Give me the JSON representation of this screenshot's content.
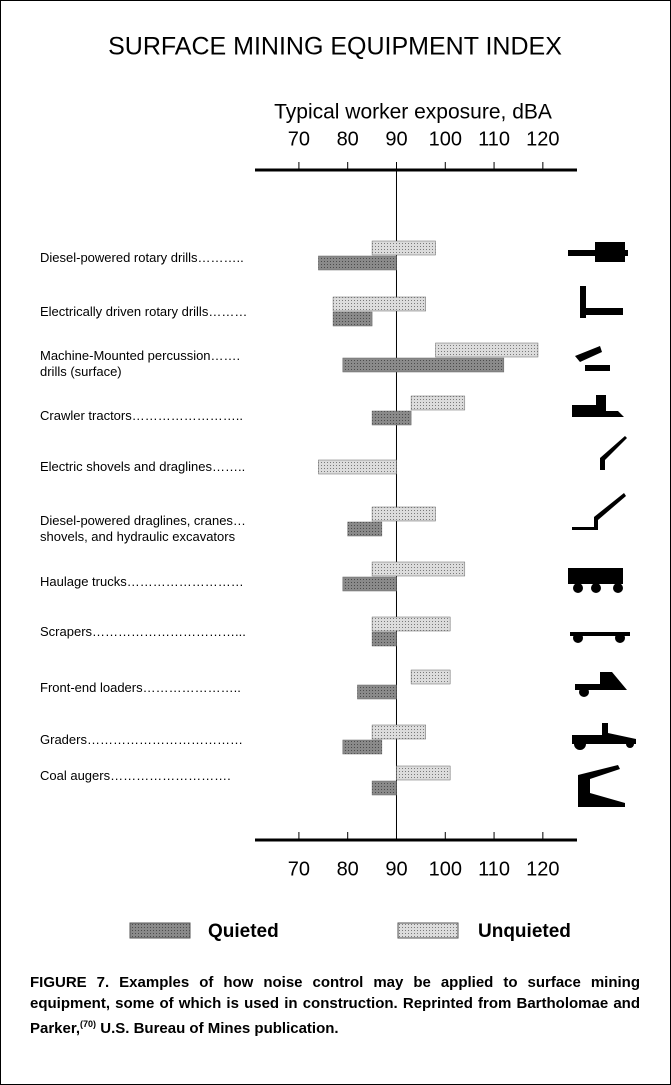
{
  "chart_data": {
    "type": "range-bar",
    "title": "SURFACE MINING EQUIPMENT INDEX",
    "x_label": "Typical worker exposure, dBA",
    "categories": [
      "Diesel-powered rotary drills………..",
      "Electrically driven rotary drills………",
      "Machine-Mounted percussion…….\ndrills (surface)",
      "Crawler tractors……………………..",
      "Electric shovels and draglines……..",
      "Diesel-powered draglines, cranes…\nshovels, and hydraulic excavators",
      "Haulage trucks………………………",
      "Scrapers……………………………...",
      "Front-end loaders…………………..",
      "Graders………………………………",
      "Coal augers………………………."
    ],
    "series": [
      {
        "name": "Unquieted",
        "color": "#dcdcdc",
        "values": [
          [
            85,
            98
          ],
          [
            77,
            96
          ],
          [
            98,
            119
          ],
          [
            93,
            104
          ],
          [
            74,
            90
          ],
          [
            85,
            98
          ],
          [
            85,
            104
          ],
          [
            85,
            101
          ],
          [
            93,
            101
          ],
          [
            85,
            96
          ],
          [
            90,
            101
          ]
        ]
      },
      {
        "name": "Quieted",
        "color": "#8a8a8a",
        "values": [
          [
            74,
            90
          ],
          [
            77,
            85
          ],
          [
            79,
            112
          ],
          [
            85,
            93
          ],
          null,
          [
            80,
            87
          ],
          [
            79,
            90
          ],
          [
            85,
            90
          ],
          [
            82,
            90
          ],
          [
            79,
            87
          ],
          [
            85,
            90
          ]
        ]
      }
    ],
    "xlim": [
      61,
      127
    ],
    "xticks": [
      70,
      80,
      90,
      100,
      110,
      120
    ],
    "reference_line": 90,
    "caption": {
      "before": "FIGURE 7.  Examples of how noise control may be applied to surface mining equipment, some of which is used in construction. Reprinted from Bartholomae and Parker,",
      "ref": "(70)",
      "after": " U.S. Bureau of Mines publication."
    }
  }
}
